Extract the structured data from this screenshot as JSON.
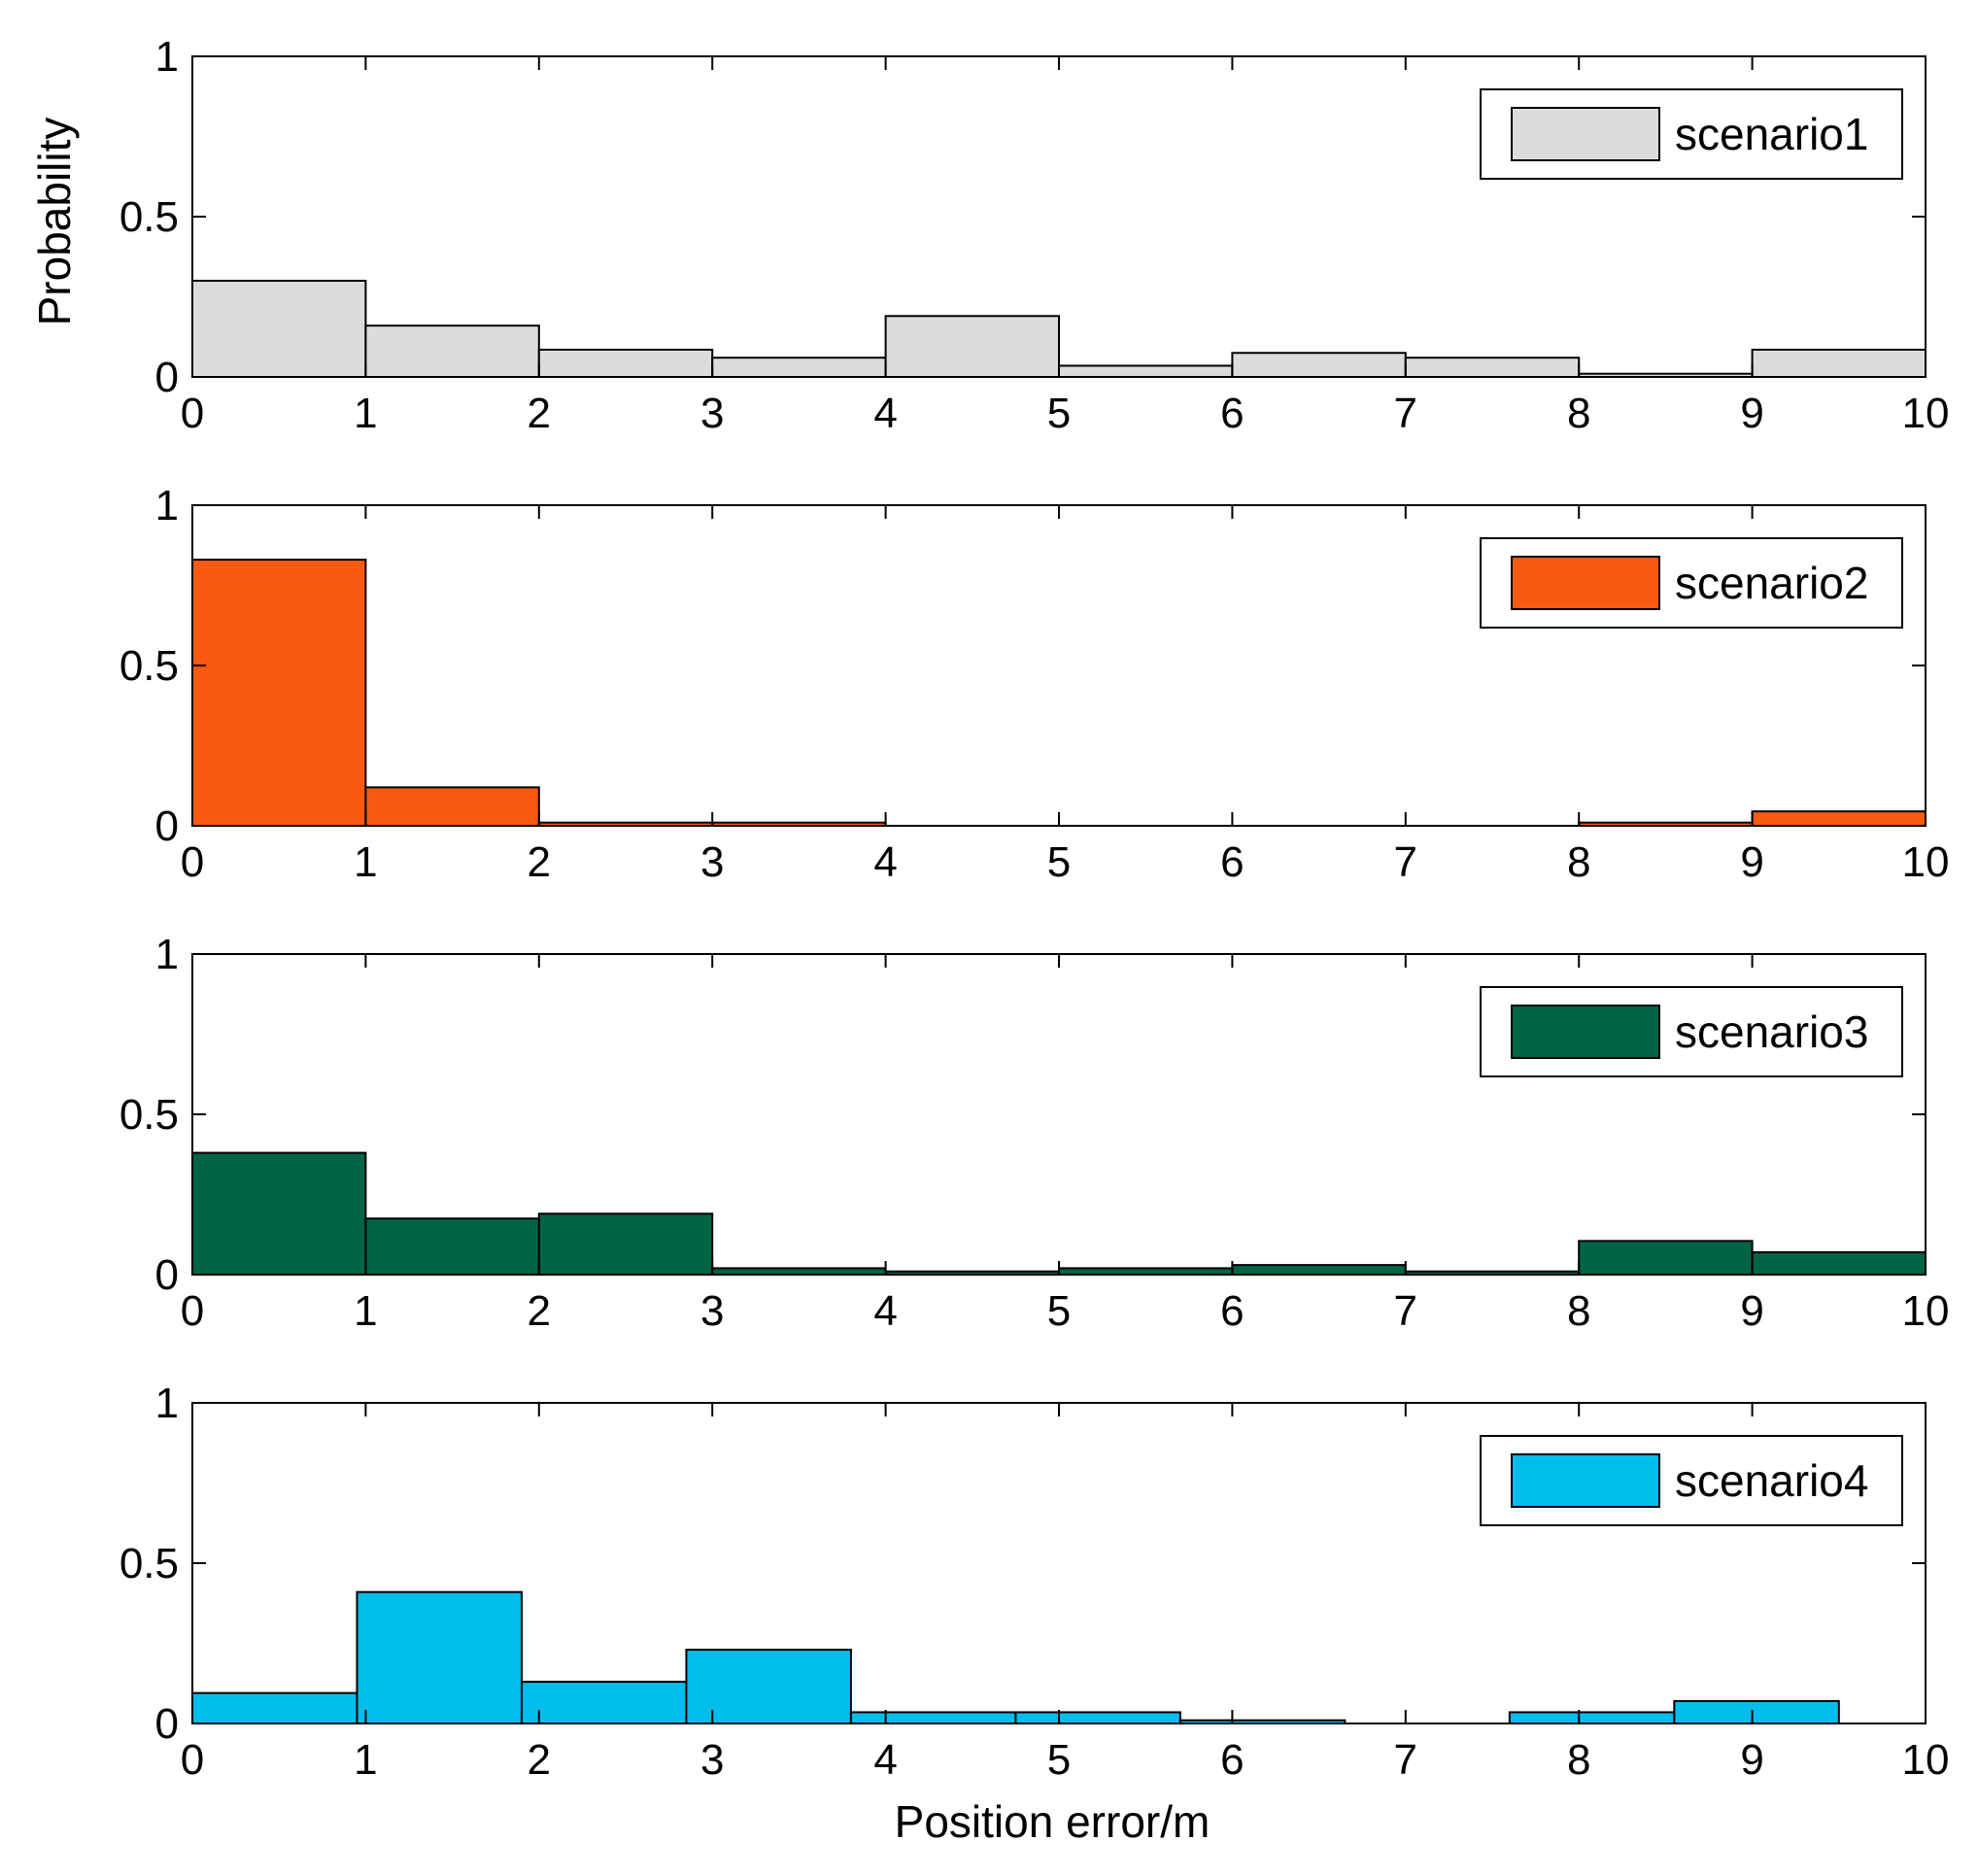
{
  "figure": {
    "xlabel": "Position error/m",
    "ylabel": "Probability"
  },
  "chart_data": [
    {
      "type": "bar",
      "title": "",
      "series_name": "scenario1",
      "color": "#dcdcdc",
      "xlim": [
        0,
        10
      ],
      "ylim": [
        0,
        1
      ],
      "xticks": [
        "0",
        "1",
        "2",
        "3",
        "4",
        "5",
        "6",
        "7",
        "8",
        "9",
        "10"
      ],
      "yticks": [
        "0",
        "0.5",
        "1"
      ],
      "bins": [
        {
          "start": 0,
          "end": 1,
          "value": 0.3
        },
        {
          "start": 1,
          "end": 2,
          "value": 0.16
        },
        {
          "start": 2,
          "end": 3,
          "value": 0.085
        },
        {
          "start": 3,
          "end": 4,
          "value": 0.06
        },
        {
          "start": 4,
          "end": 5,
          "value": 0.19
        },
        {
          "start": 5,
          "end": 6,
          "value": 0.035
        },
        {
          "start": 6,
          "end": 7,
          "value": 0.075
        },
        {
          "start": 7,
          "end": 8,
          "value": 0.06
        },
        {
          "start": 8,
          "end": 9,
          "value": 0.01
        },
        {
          "start": 9,
          "end": 10,
          "value": 0.085
        }
      ]
    },
    {
      "type": "bar",
      "title": "",
      "series_name": "scenario2",
      "color": "#f75a10",
      "xlim": [
        0,
        10
      ],
      "ylim": [
        0,
        1
      ],
      "xticks": [
        "0",
        "1",
        "2",
        "3",
        "4",
        "5",
        "6",
        "7",
        "8",
        "9",
        "10"
      ],
      "yticks": [
        "0",
        "0.5",
        "1"
      ],
      "bins": [
        {
          "start": 0,
          "end": 1,
          "value": 0.83
        },
        {
          "start": 1,
          "end": 2,
          "value": 0.12
        },
        {
          "start": 2,
          "end": 3,
          "value": 0.01
        },
        {
          "start": 3,
          "end": 4,
          "value": 0.01
        },
        {
          "start": 4,
          "end": 5,
          "value": 0.0
        },
        {
          "start": 5,
          "end": 6,
          "value": 0.0
        },
        {
          "start": 6,
          "end": 7,
          "value": 0.0
        },
        {
          "start": 7,
          "end": 8,
          "value": 0.0
        },
        {
          "start": 8,
          "end": 9,
          "value": 0.01
        },
        {
          "start": 9,
          "end": 10,
          "value": 0.045
        }
      ]
    },
    {
      "type": "bar",
      "title": "",
      "series_name": "scenario3",
      "color": "#006447",
      "xlim": [
        0,
        10
      ],
      "ylim": [
        0,
        1
      ],
      "xticks": [
        "0",
        "1",
        "2",
        "3",
        "4",
        "5",
        "6",
        "7",
        "8",
        "9",
        "10"
      ],
      "yticks": [
        "0",
        "0.5",
        "1"
      ],
      "bins": [
        {
          "start": 0,
          "end": 1,
          "value": 0.38
        },
        {
          "start": 1,
          "end": 2,
          "value": 0.175
        },
        {
          "start": 2,
          "end": 3,
          "value": 0.19
        },
        {
          "start": 3,
          "end": 4,
          "value": 0.02
        },
        {
          "start": 4,
          "end": 5,
          "value": 0.01
        },
        {
          "start": 5,
          "end": 6,
          "value": 0.02
        },
        {
          "start": 6,
          "end": 7,
          "value": 0.03
        },
        {
          "start": 7,
          "end": 8,
          "value": 0.01
        },
        {
          "start": 8,
          "end": 9,
          "value": 0.105
        },
        {
          "start": 9,
          "end": 10,
          "value": 0.07
        }
      ]
    },
    {
      "type": "bar",
      "title": "",
      "series_name": "scenario4",
      "color": "#00bdec",
      "xlim": [
        0,
        10
      ],
      "ylim": [
        0,
        1
      ],
      "xticks": [
        "0",
        "1",
        "2",
        "3",
        "4",
        "5",
        "6",
        "7",
        "8",
        "9",
        "10"
      ],
      "yticks": [
        "0",
        "0.5",
        "1"
      ],
      "bins": [
        {
          "start": 0,
          "end": 0.95,
          "value": 0.095
        },
        {
          "start": 0.95,
          "end": 1.9,
          "value": 0.41
        },
        {
          "start": 1.9,
          "end": 2.85,
          "value": 0.13
        },
        {
          "start": 2.85,
          "end": 3.8,
          "value": 0.23
        },
        {
          "start": 3.8,
          "end": 4.75,
          "value": 0.035
        },
        {
          "start": 4.75,
          "end": 5.7,
          "value": 0.035
        },
        {
          "start": 5.7,
          "end": 6.65,
          "value": 0.01
        },
        {
          "start": 6.65,
          "end": 7.6,
          "value": 0.0
        },
        {
          "start": 7.6,
          "end": 8.55,
          "value": 0.035
        },
        {
          "start": 8.55,
          "end": 9.5,
          "value": 0.07
        }
      ]
    }
  ]
}
